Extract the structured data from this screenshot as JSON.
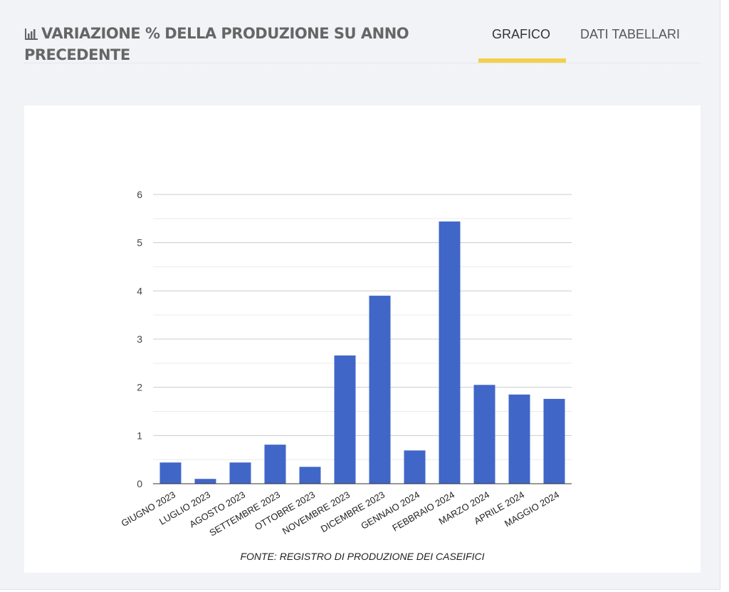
{
  "header": {
    "title": "VARIAZIONE % DELLA PRODUZIONE SU ANNO PRECEDENTE",
    "title_icon": "bar-chart-icon",
    "tabs": [
      {
        "label": "GRAFICO",
        "active": true
      },
      {
        "label": "DATI TABELLARI",
        "active": false
      }
    ],
    "accent_color": "#f2d14a"
  },
  "chart_data": {
    "type": "bar",
    "title": "",
    "xlabel": "FONTE: REGISTRO DI PRODUZIONE DEI CASEIFICI",
    "ylabel": "",
    "ylim": [
      0,
      6
    ],
    "yticks": [
      0,
      1,
      2,
      3,
      4,
      5,
      6
    ],
    "grid": true,
    "bar_color": "#4066c7",
    "categories": [
      "GIUGNO 2023",
      "LUGLIO 2023",
      "AGOSTO 2023",
      "SETTEMBRE 2023",
      "OTTOBRE 2023",
      "NOVEMBRE 2023",
      "DICEMBRE 2023",
      "GENNAIO 2024",
      "FEBBRAIO 2024",
      "MARZO 2024",
      "APRILE 2024",
      "MAGGIO 2024"
    ],
    "values": [
      0.44,
      0.1,
      0.44,
      0.81,
      0.35,
      2.66,
      3.9,
      0.69,
      5.44,
      2.05,
      1.85,
      1.76
    ]
  }
}
